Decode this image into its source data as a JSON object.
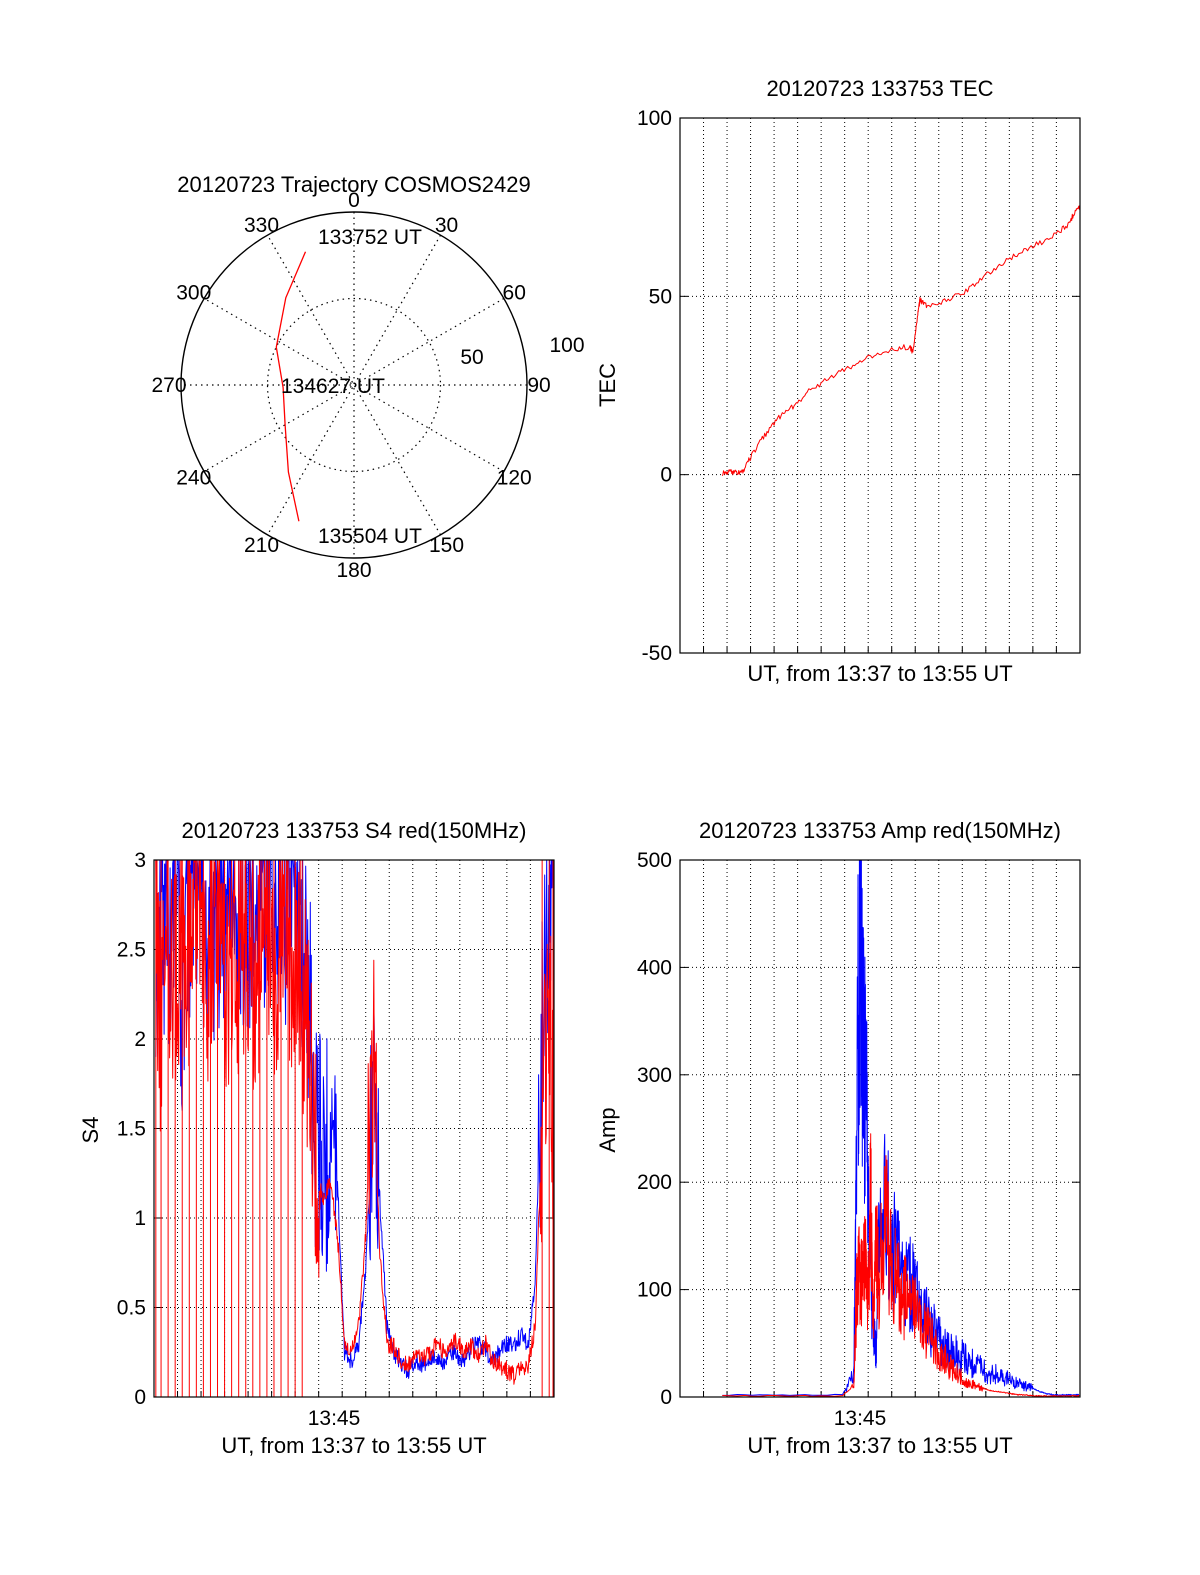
{
  "chart_data": [
    {
      "id": "trajectory",
      "type": "polar",
      "title": "20120723 Trajectory COSMOS2429",
      "angle_labels": [
        "0",
        "30",
        "60",
        "90",
        "120",
        "150",
        "180",
        "210",
        "240",
        "270",
        "300",
        "330"
      ],
      "radial_labels": [
        "50",
        "100"
      ],
      "radial_ticks": [
        50,
        100
      ],
      "rmax": 100,
      "grid": true,
      "series": [
        {
          "color": "#ff0000",
          "points": [
            {
              "az": 340,
              "r": 82
            },
            {
              "az": 322,
              "r": 64
            },
            {
              "az": 296,
              "r": 50
            },
            {
              "az": 268,
              "r": 41
            },
            {
              "az": 240,
              "r": 46
            },
            {
              "az": 217,
              "r": 63
            },
            {
              "az": 202,
              "r": 85
            }
          ]
        }
      ],
      "annotations": [
        {
          "text": "133752 UT",
          "az": 0,
          "r": 82
        },
        {
          "text": "134627 UT",
          "az": 270,
          "r": 0
        },
        {
          "text": "135504 UT",
          "az": 180,
          "r": 85
        }
      ]
    },
    {
      "id": "tec",
      "type": "line",
      "title": "20120723 133753 TEC",
      "xlabel": "UT, from 13:37 to 13:55 UT",
      "ylabel": "TEC",
      "xlim": [
        13.6333,
        13.9167
      ],
      "ylim": [
        -50,
        100
      ],
      "yticks": [
        -50,
        0,
        50,
        100
      ],
      "ytick_labels": [
        "-50",
        "0",
        "50",
        "100"
      ],
      "grid": true,
      "series": [
        {
          "color": "#ff0000",
          "x": [
            13.6633,
            13.6683,
            13.6733,
            13.6783,
            13.6833,
            13.6933,
            13.7033,
            13.7133,
            13.7233,
            13.7383,
            13.7533,
            13.7683,
            13.7833,
            13.7963,
            13.7983,
            13.8018,
            13.8033,
            13.8083,
            13.8233,
            13.8383,
            13.8533,
            13.8683,
            13.8833,
            13.8983,
            13.9083,
            13.9133,
            13.9167
          ],
          "y": [
            0.5,
            1,
            0.5,
            1,
            5,
            11,
            16,
            19,
            23,
            27,
            30,
            33,
            35,
            36,
            34,
            45,
            49,
            47,
            49,
            52,
            57,
            61,
            64,
            67,
            70,
            74,
            75
          ]
        }
      ]
    },
    {
      "id": "s4",
      "type": "line",
      "title": "20120723 133753 S4 red(150MHz)",
      "xlabel": "UT, from 13:37 to 13:55 UT",
      "ylabel": "S4",
      "xlim": [
        13.6333,
        13.9167
      ],
      "ylim": [
        0,
        3
      ],
      "yticks": [
        0,
        0.5,
        1,
        1.5,
        2,
        2.5,
        3
      ],
      "ytick_labels": [
        "0",
        "0.5",
        "1",
        "1.5",
        "2",
        "2.5",
        "3"
      ],
      "xtick_label": "13:45",
      "xtick_value": 13.75,
      "grid": true,
      "series": [
        {
          "color": "#0000ff",
          "x": [
            13.6346,
            13.6383,
            13.6433,
            13.6483,
            13.6533,
            13.6583,
            13.6633,
            13.6683,
            13.6733,
            13.6783,
            13.6833,
            13.6883,
            13.6933,
            13.6983,
            13.7033,
            13.7083,
            13.7133,
            13.7183,
            13.7233,
            13.7283,
            13.7333,
            13.7383,
            13.7433,
            13.7483,
            13.7533,
            13.7583,
            13.7633,
            13.7683,
            13.7733,
            13.7783,
            13.7833,
            13.7883,
            13.7933,
            13.7983,
            13.8033,
            13.8083,
            13.8133,
            13.8183,
            13.8233,
            13.8283,
            13.8333,
            13.8383,
            13.8433,
            13.8483,
            13.8533,
            13.8583,
            13.8633,
            13.8683,
            13.8733,
            13.8783,
            13.8833,
            13.8883,
            13.8933,
            13.8983,
            13.9033,
            13.9083,
            13.9133,
            13.916
          ],
          "y": [
            2.6,
            2.9,
            2.4,
            2.8,
            2.3,
            2.7,
            2.9,
            2.6,
            2.8,
            2.5,
            2.7,
            2.9,
            2.6,
            2.8,
            2.4,
            2.7,
            2.9,
            2.6,
            2.8,
            2.7,
            2.9,
            2.6,
            2.2,
            1.4,
            1.3,
            1.5,
            1.2,
            0.25,
            0.2,
            0.3,
            0.7,
            1.6,
            1.1,
            0.4,
            0.25,
            0.18,
            0.15,
            0.2,
            0.18,
            0.2,
            0.22,
            0.2,
            0.25,
            0.23,
            0.2,
            0.28,
            0.3,
            0.25,
            0.22,
            0.25,
            0.3,
            0.28,
            0.35,
            0.3,
            0.6,
            2.0,
            2.9,
            3.0
          ]
        },
        {
          "color": "#ff0000",
          "x": [
            13.6346,
            13.6383,
            13.6433,
            13.6483,
            13.6533,
            13.6583,
            13.6633,
            13.6683,
            13.6733,
            13.6783,
            13.6833,
            13.6883,
            13.6933,
            13.6983,
            13.7033,
            13.7083,
            13.7133,
            13.7183,
            13.7233,
            13.7283,
            13.7333,
            13.7383,
            13.7433,
            13.7483,
            13.7533,
            13.7583,
            13.7633,
            13.7683,
            13.7733,
            13.7783,
            13.7833,
            13.7883,
            13.7933,
            13.7983,
            13.8033,
            13.8083,
            13.8133,
            13.8183,
            13.8233,
            13.8283,
            13.8333,
            13.8383,
            13.8433,
            13.8483,
            13.8533,
            13.8583,
            13.8633,
            13.8683,
            13.8733,
            13.8783,
            13.8833,
            13.8883,
            13.8933,
            13.8983,
            13.9033,
            13.9083,
            13.9133,
            13.916
          ],
          "y": [
            2.5,
            2.0,
            2.7,
            2.2,
            2.6,
            2.4,
            2.8,
            2.3,
            2.5,
            2.7,
            2.2,
            2.6,
            2.4,
            2.7,
            2.3,
            2.5,
            2.6,
            2.2,
            2.5,
            2.4,
            2.6,
            2.3,
            2.0,
            1.3,
            1.1,
            1.2,
            0.9,
            0.3,
            0.25,
            0.4,
            0.9,
            1.9,
            0.8,
            0.3,
            0.28,
            0.2,
            0.18,
            0.25,
            0.22,
            0.24,
            0.3,
            0.26,
            0.28,
            0.32,
            0.25,
            0.28,
            0.24,
            0.3,
            0.2,
            0.18,
            0.15,
            0.12,
            0.15,
            0.18,
            0.4,
            1.5,
            2.4,
            1.5
          ]
        }
      ]
    },
    {
      "id": "amp",
      "type": "line",
      "title": "20120723 133753 Amp red(150MHz)",
      "xlabel": "UT, from 13:37 to 13:55 UT",
      "ylabel": "Amp",
      "xlim": [
        13.6333,
        13.9167
      ],
      "ylim": [
        0,
        500
      ],
      "yticks": [
        0,
        100,
        200,
        300,
        400,
        500
      ],
      "ytick_labels": [
        "0",
        "100",
        "200",
        "300",
        "400",
        "500"
      ],
      "xtick_label": "13:45",
      "xtick_value": 13.75,
      "grid": true,
      "series": [
        {
          "color": "#0000ff",
          "x": [
            13.6633,
            13.7483,
            13.7563,
            13.7583,
            13.7603,
            13.7623,
            13.7643,
            13.7663,
            13.7683,
            13.7703,
            13.7723,
            13.7743,
            13.7783,
            13.7833,
            13.7883,
            13.7933,
            13.7983,
            13.8033,
            13.8083,
            13.8133,
            13.8183,
            13.8233,
            13.8283,
            13.8333,
            13.8383,
            13.8433,
            13.8483,
            13.8533,
            13.8583,
            13.8633,
            13.8683,
            13.8733,
            13.8783,
            13.8833,
            13.8883,
            13.8933,
            13.8983,
            13.9033,
            13.9083,
            13.9133,
            13.916
          ],
          "y": [
            2,
            2,
            20,
            200,
            460,
            350,
            300,
            220,
            120,
            60,
            40,
            150,
            180,
            140,
            120,
            110,
            100,
            80,
            70,
            60,
            50,
            45,
            40,
            38,
            30,
            35,
            25,
            20,
            22,
            18,
            15,
            12,
            10,
            8,
            5,
            3,
            2,
            2,
            2,
            2,
            2
          ]
        },
        {
          "color": "#ff0000",
          "x": [
            13.6633,
            13.7483,
            13.7563,
            13.7583,
            13.7603,
            13.7623,
            13.7643,
            13.7663,
            13.7683,
            13.7703,
            13.7723,
            13.7743,
            13.7783,
            13.7833,
            13.7883,
            13.7933,
            13.7983,
            13.8033,
            13.8083,
            13.8133,
            13.8183,
            13.8233,
            13.8283,
            13.8333,
            13.8383,
            13.8433,
            13.8483,
            13.8533,
            13.8583,
            13.8633,
            13.8683,
            13.8733,
            13.8783,
            13.8833,
            13.8883,
            13.8933,
            13.8983,
            13.9033,
            13.9083,
            13.9133,
            13.916
          ],
          "y": [
            1,
            1,
            10,
            90,
            120,
            100,
            130,
            80,
            190,
            60,
            150,
            110,
            170,
            120,
            100,
            90,
            80,
            70,
            60,
            50,
            40,
            30,
            25,
            18,
            12,
            10,
            8,
            6,
            5,
            4,
            3,
            2,
            2,
            1,
            1,
            1,
            1,
            1,
            1,
            1,
            1
          ]
        }
      ]
    }
  ]
}
